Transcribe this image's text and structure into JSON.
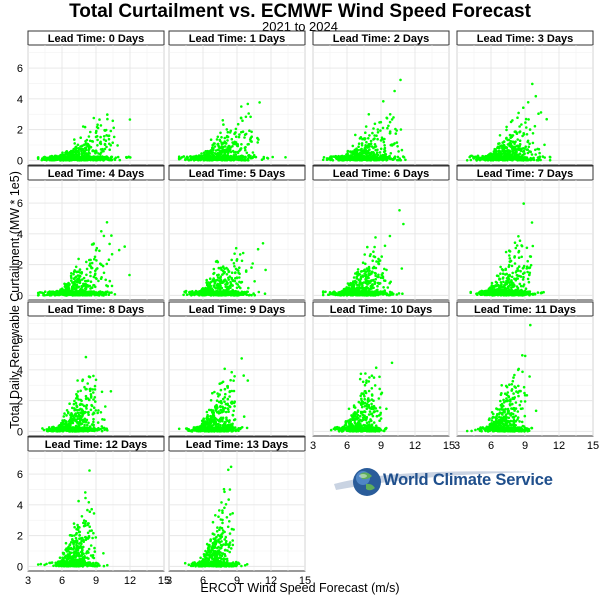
{
  "chart_data": {
    "type": "scatter",
    "title": "Total Curtailment vs. ECMWF Wind Speed Forecast",
    "subtitle": "2021 to 2024",
    "xlabel": "ERCOT Wind Speed Forecast (m/s)",
    "ylabel": "Total Daily Renewable Curtailment (MW * 1e5)",
    "xlim": [
      3,
      15
    ],
    "ylim": [
      -0.3,
      7.5
    ],
    "x_ticks": [
      "3",
      "6",
      "9",
      "12",
      "15"
    ],
    "y_ticks": [
      "0",
      "2",
      "4",
      "6"
    ],
    "grid": true,
    "point_color": "#00ff00",
    "panels": [
      {
        "label": "Lead Time: 0 Days",
        "x_center": 7.7,
        "x_spread": 1.55,
        "x_max": 14.2
      },
      {
        "label": "Lead Time: 1 Days",
        "x_center": 7.6,
        "x_spread": 1.5,
        "x_max": 13.6
      },
      {
        "label": "Lead Time: 2 Days",
        "x_center": 7.5,
        "x_spread": 1.45,
        "x_max": 13.2
      },
      {
        "label": "Lead Time: 3 Days",
        "x_center": 7.5,
        "x_spread": 1.4,
        "x_max": 13.5
      },
      {
        "label": "Lead Time: 4 Days",
        "x_center": 7.4,
        "x_spread": 1.35,
        "x_max": 12.6
      },
      {
        "label": "Lead Time: 5 Days",
        "x_center": 7.4,
        "x_spread": 1.3,
        "x_max": 12.2
      },
      {
        "label": "Lead Time: 6 Days",
        "x_center": 7.3,
        "x_spread": 1.2,
        "x_max": 11.8
      },
      {
        "label": "Lead Time: 7 Days",
        "x_center": 7.3,
        "x_spread": 1.15,
        "x_max": 11.5
      },
      {
        "label": "Lead Time: 8 Days",
        "x_center": 7.3,
        "x_spread": 1.05,
        "x_max": 11.0
      },
      {
        "label": "Lead Time: 9 Days",
        "x_center": 7.2,
        "x_spread": 1.0,
        "x_max": 10.9
      },
      {
        "label": "Lead Time: 10 Days",
        "x_center": 7.2,
        "x_spread": 0.95,
        "x_max": 10.6
      },
      {
        "label": "Lead Time: 11 Days",
        "x_center": 7.2,
        "x_spread": 0.9,
        "x_max": 10.3
      },
      {
        "label": "Lead Time: 12 Days",
        "x_center": 7.2,
        "x_spread": 0.85,
        "x_max": 10.0
      },
      {
        "label": "Lead Time: 13 Days",
        "x_center": 7.1,
        "x_spread": 0.8,
        "x_max": 10.0
      }
    ]
  },
  "logo": {
    "text": "World Climate Service",
    "icon": "globe-icon",
    "color": "#1f4f8c"
  }
}
